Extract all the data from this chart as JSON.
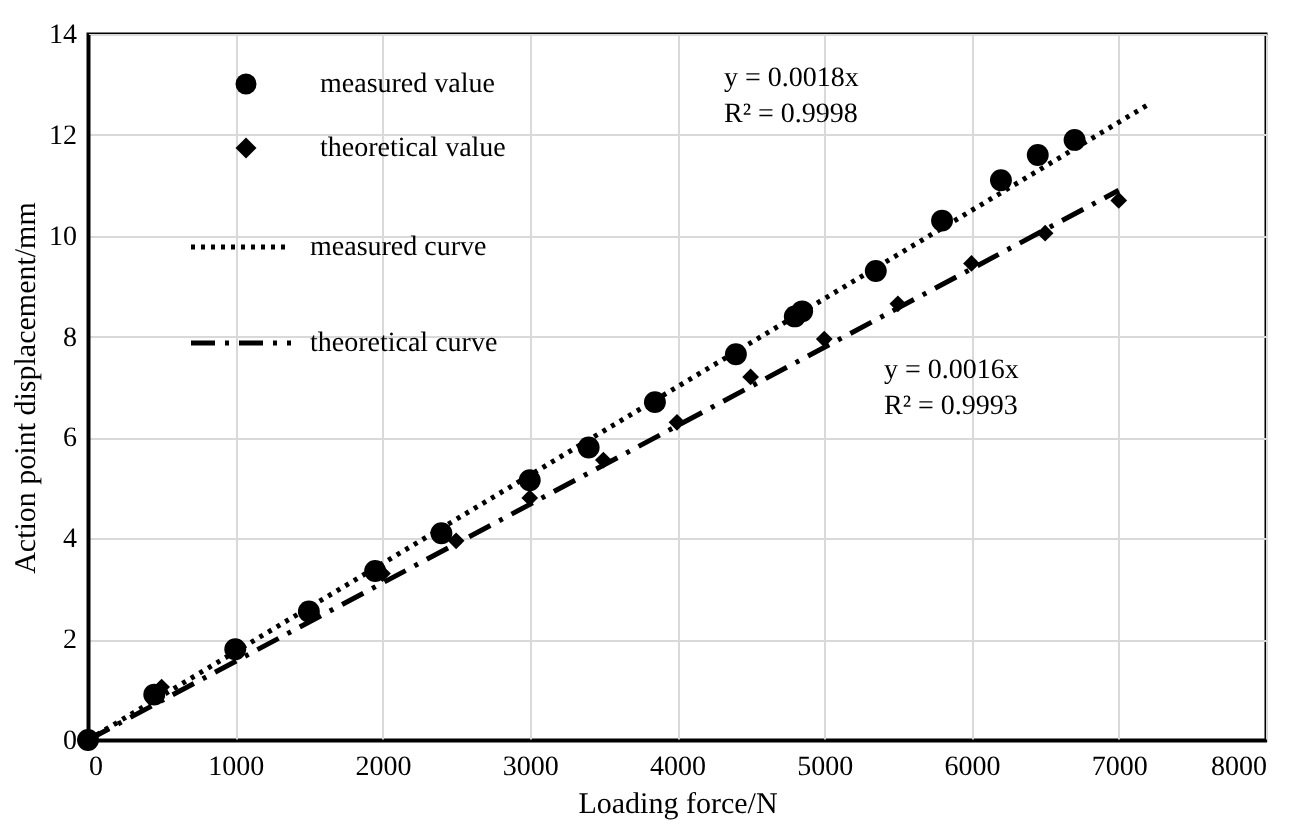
{
  "chart_data": {
    "type": "scatter",
    "xlabel": "Loading force/N",
    "ylabel": "Action point displacement/mm",
    "xlim": [
      0,
      8000
    ],
    "xticks": [
      0,
      1000,
      2000,
      3000,
      4000,
      5000,
      6000,
      7000,
      8000
    ],
    "ylim": [
      0,
      14
    ],
    "yticks": [
      0,
      2,
      4,
      6,
      8,
      10,
      12,
      14
    ],
    "grid": true,
    "legend": "top left",
    "series": [
      {
        "name": "measured value",
        "marker": "circle",
        "color": "#000000",
        "x": [
          0,
          450,
          1000,
          1500,
          1950,
          2400,
          3000,
          3400,
          3850,
          4400,
          4800,
          4850,
          5350,
          5800,
          6200,
          6450,
          6700
        ],
        "values": [
          0,
          0.9,
          1.8,
          2.55,
          3.35,
          4.1,
          5.15,
          5.8,
          6.7,
          7.65,
          8.4,
          8.5,
          9.3,
          10.3,
          11.1,
          11.6,
          11.9
        ]
      },
      {
        "name": "theoretical value",
        "marker": "diamond",
        "color": "#000000",
        "x": [
          500,
          2000,
          2500,
          3000,
          3500,
          4000,
          4500,
          5000,
          5500,
          6000,
          6500,
          7000
        ],
        "values": [
          1.05,
          3.3,
          3.95,
          4.8,
          5.55,
          6.3,
          7.2,
          7.95,
          8.65,
          9.45,
          10.05,
          10.7
        ]
      },
      {
        "name": "measured curve",
        "type": "line",
        "line_style": "dotted",
        "color": "#000000",
        "x": [
          0,
          7200
        ],
        "values": [
          0,
          12.6
        ]
      },
      {
        "name": "theoretical curve",
        "type": "line",
        "line_style": "dashed",
        "color": "#000000",
        "x": [
          0,
          7000
        ],
        "values": [
          0,
          10.9
        ]
      }
    ],
    "annotations": [
      "y = 0.0018x",
      "R² = 0.9998",
      "y = 0.0016x",
      "R² = 0.9993"
    ]
  }
}
